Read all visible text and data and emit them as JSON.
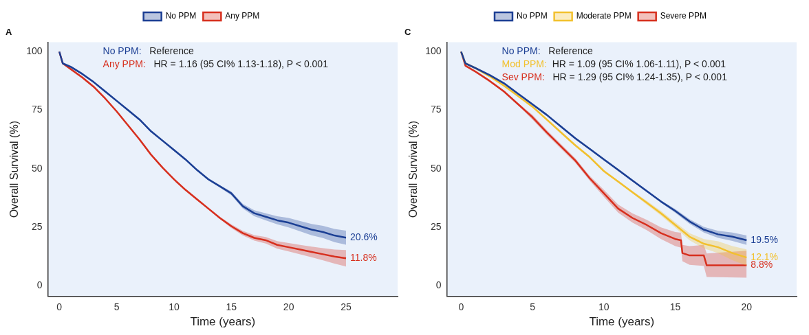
{
  "chart_data": [
    {
      "type": "line",
      "title": "A",
      "xlabel": "Time (years)",
      "ylabel": "Overall Survival (%)",
      "xlim": [
        -1,
        29.5
      ],
      "xticks": [
        0,
        5,
        10,
        15,
        20,
        25
      ],
      "ylim": [
        -4.5,
        104
      ],
      "yticks": [
        0,
        25,
        50,
        75,
        100
      ],
      "grid": false,
      "legend": "top",
      "marker": "none",
      "annotations": [
        "No PPM:   Reference",
        "Any PPM:   HR = 1.16 (95 CI% 1.13-1.18), P < 0.001"
      ],
      "series": [
        {
          "name": "No PPM",
          "color": "#1c3f94",
          "x": [
            0,
            0.3,
            1,
            2,
            3,
            4,
            5,
            6,
            7,
            8,
            9,
            10,
            11,
            12,
            13,
            14,
            15,
            16,
            17,
            18,
            19,
            20,
            21,
            22,
            23,
            24,
            25
          ],
          "values": [
            100,
            95,
            93.5,
            90.5,
            87,
            83,
            79,
            75,
            71,
            66,
            62,
            58,
            54,
            49.5,
            45.5,
            42.5,
            39.5,
            34,
            31,
            29.5,
            28,
            27,
            25.5,
            24,
            23,
            21.5,
            20.6
          ],
          "lower": [
            100,
            94.5,
            93,
            90,
            86.5,
            82.5,
            78.5,
            74.5,
            70.5,
            65.5,
            61.5,
            57.5,
            53.5,
            49,
            45,
            42,
            38.7,
            33,
            29.7,
            28,
            26.3,
            25,
            23.3,
            21.6,
            20.4,
            18.7,
            17.6
          ],
          "upper": [
            100,
            95.5,
            94,
            91,
            87.5,
            83.5,
            79.5,
            75.5,
            71.5,
            66.5,
            62.5,
            58.5,
            54.5,
            50,
            46,
            43,
            40.3,
            35,
            32.3,
            31,
            29.7,
            29,
            27.7,
            26.4,
            25.6,
            24.3,
            23.6
          ],
          "value_labels": [
            null,
            null,
            null,
            null,
            null,
            null,
            null,
            null,
            null,
            null,
            null,
            null,
            null,
            null,
            null,
            null,
            null,
            null,
            null,
            null,
            null,
            null,
            null,
            null,
            null,
            null,
            "20.6%"
          ]
        },
        {
          "name": "Any PPM",
          "color": "#d7301f",
          "x": [
            0,
            0.3,
            1,
            2,
            3,
            4,
            5,
            6,
            7,
            8,
            9,
            10,
            11,
            12,
            13,
            14,
            15,
            16,
            17,
            18,
            19,
            20,
            21,
            22,
            23,
            24,
            25
          ],
          "values": [
            100,
            95,
            92.5,
            89,
            85,
            80,
            74.5,
            68.5,
            62.5,
            56,
            50.5,
            45.5,
            41,
            37,
            33,
            29,
            25.5,
            22.5,
            20.5,
            19.5,
            17.5,
            16.5,
            15.5,
            14.5,
            13.5,
            12.5,
            11.8
          ],
          "lower": [
            100,
            94.5,
            92,
            88.5,
            84.5,
            79.5,
            74,
            68,
            62,
            55.5,
            50,
            45,
            40.5,
            36.5,
            32.5,
            28.5,
            24.7,
            21.5,
            19.3,
            18.1,
            15.9,
            14.7,
            13.5,
            12.2,
            10.9,
            9.5,
            8.3
          ],
          "upper": [
            100,
            95.5,
            93,
            89.5,
            85.5,
            80.5,
            75,
            69,
            63,
            56.5,
            51,
            46,
            41.5,
            37.5,
            33.5,
            29.5,
            26.3,
            23.5,
            21.7,
            20.9,
            19.1,
            18.3,
            17.5,
            16.8,
            16.1,
            15.5,
            15.3
          ],
          "value_labels": [
            null,
            null,
            null,
            null,
            null,
            null,
            null,
            null,
            null,
            null,
            null,
            null,
            null,
            null,
            null,
            null,
            null,
            null,
            null,
            null,
            null,
            null,
            null,
            null,
            null,
            null,
            "11.8%"
          ]
        }
      ]
    },
    {
      "type": "line",
      "title": "C",
      "xlabel": "Time (years)",
      "ylabel": "Overall Survival (%)",
      "xlim": [
        -1,
        23.5
      ],
      "xticks": [
        0,
        5,
        10,
        15,
        20
      ],
      "ylim": [
        -4.5,
        104
      ],
      "yticks": [
        0,
        25,
        50,
        75,
        100
      ],
      "grid": false,
      "legend": "top",
      "marker": "none",
      "annotations": [
        "No PPM:   Reference",
        "Mod PPM:  HR = 1.09 (95 CI% 1.06-1.11), P < 0.001",
        "Sev PPM:   HR = 1.29 (95 CI% 1.24-1.35), P < 0.001"
      ],
      "series": [
        {
          "name": "No PPM",
          "color": "#1c3f94",
          "x": [
            0,
            0.3,
            1,
            2,
            3,
            4,
            5,
            6,
            7,
            8,
            9,
            10,
            11,
            12,
            13,
            14,
            15,
            16,
            17,
            18,
            19,
            20
          ],
          "values": [
            100,
            95,
            93,
            90,
            86.5,
            82,
            77.5,
            73,
            68,
            63,
            58.5,
            54,
            49.5,
            45,
            40.5,
            36,
            32,
            27.5,
            24,
            22,
            21,
            19.5
          ],
          "lower": [
            100,
            94.5,
            92.5,
            89.5,
            86,
            81.5,
            77,
            72.5,
            67.5,
            62.5,
            58,
            53.5,
            49,
            44.5,
            40,
            35.5,
            31.2,
            26.5,
            22.8,
            20.5,
            19.2,
            17.5
          ],
          "upper": [
            100,
            95.5,
            93.5,
            90.5,
            87,
            82.5,
            78,
            73.5,
            68.5,
            63.5,
            59,
            54.5,
            50,
            45.5,
            41,
            36.5,
            32.8,
            28.5,
            25.2,
            23.5,
            22.8,
            21.5
          ],
          "value_labels": [
            null,
            null,
            null,
            null,
            null,
            null,
            null,
            null,
            null,
            null,
            null,
            null,
            null,
            null,
            null,
            null,
            null,
            null,
            null,
            null,
            null,
            "19.5%"
          ]
        },
        {
          "name": "Moderate PPM",
          "color": "#f2c12e",
          "x": [
            0,
            0.3,
            1,
            2,
            3,
            4,
            5,
            6,
            7,
            8,
            9,
            10,
            11,
            12,
            13,
            14,
            15,
            16,
            17,
            18,
            19,
            20
          ],
          "values": [
            100,
            95,
            93,
            89.5,
            85.5,
            81,
            76.5,
            71,
            65.5,
            60,
            55,
            49,
            44.5,
            40,
            35.5,
            31,
            26,
            21,
            18,
            16.5,
            14,
            12.1
          ],
          "lower": [
            100,
            94.5,
            92.5,
            89,
            85,
            80.5,
            76,
            70.5,
            65,
            59.5,
            54.5,
            48.5,
            44,
            39.5,
            34.7,
            30,
            24.8,
            19.5,
            16,
            14,
            11,
            8.6
          ],
          "upper": [
            100,
            95.5,
            93.5,
            90,
            86,
            81.5,
            77,
            71.5,
            66,
            60.5,
            55.5,
            49.5,
            45,
            40.5,
            36.3,
            32,
            27.2,
            22.5,
            20,
            19,
            17,
            15.6
          ],
          "value_labels": [
            null,
            null,
            null,
            null,
            null,
            null,
            null,
            null,
            null,
            null,
            null,
            null,
            null,
            null,
            null,
            null,
            null,
            null,
            null,
            null,
            null,
            "12.1%"
          ]
        },
        {
          "name": "Severe PPM",
          "color": "#d7301f",
          "x": [
            0,
            0.3,
            1,
            2,
            3,
            4,
            5,
            6,
            7,
            8,
            9,
            10,
            11,
            12,
            13,
            14,
            15,
            15.4,
            15.5,
            16,
            17,
            17.2,
            20
          ],
          "values": [
            100,
            94,
            91.5,
            87.5,
            83,
            77.5,
            72,
            65.5,
            59.5,
            53.5,
            46,
            39.5,
            33,
            29,
            26,
            22.5,
            20,
            19.5,
            14,
            13,
            13,
            8.8,
            8.8
          ],
          "lower": [
            100,
            93.5,
            91,
            87,
            82.5,
            77,
            71,
            64.5,
            58.5,
            52.5,
            45,
            38,
            31.3,
            27,
            23.8,
            20,
            17,
            16.3,
            10.5,
            9,
            8.5,
            3.8,
            3.5
          ],
          "upper": [
            100,
            94.5,
            92,
            88,
            83.5,
            78,
            73,
            66.5,
            60.5,
            54.5,
            47,
            41,
            34.7,
            31,
            28.2,
            25,
            23,
            22.7,
            17.5,
            17,
            17.5,
            13.8,
            15
          ],
          "value_labels": [
            null,
            null,
            null,
            null,
            null,
            null,
            null,
            null,
            null,
            null,
            null,
            null,
            null,
            null,
            null,
            null,
            null,
            null,
            null,
            null,
            null,
            null,
            "8.8%"
          ]
        }
      ]
    }
  ]
}
